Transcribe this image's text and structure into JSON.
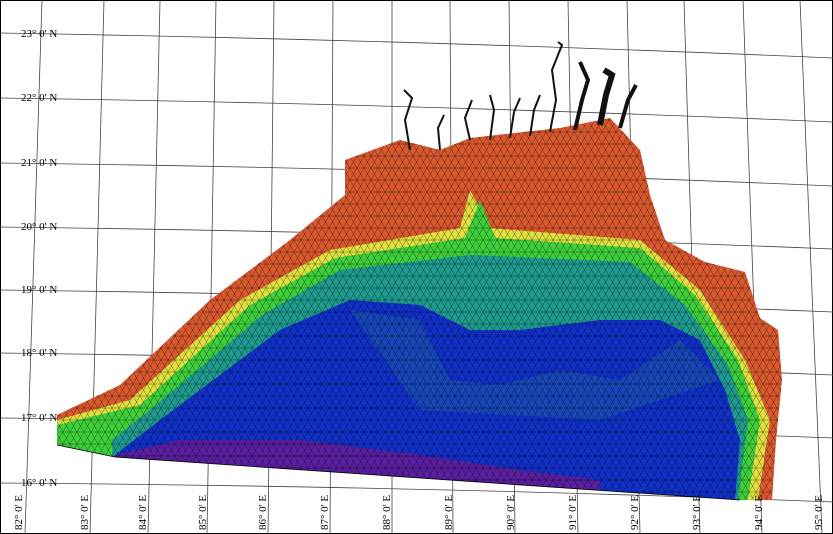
{
  "map": {
    "latitude_labels": [
      "23° 0' N",
      "22° 0' N",
      "21° 0' N",
      "20° 0' N",
      "19° 0' N",
      "18° 0' N",
      "17° 0' N",
      "16° 0' N"
    ],
    "longitude_labels": [
      "82° 0' E",
      "83° 0' E",
      "84° 0' E",
      "85° 0' E",
      "86° 0' E",
      "87° 0' E",
      "88° 0' E",
      "89° 0' E",
      "90° 0' E",
      "91° 0' E",
      "92° 0' E",
      "93° 0' E",
      "94° 0' E",
      "95° 0' E"
    ]
  }
}
